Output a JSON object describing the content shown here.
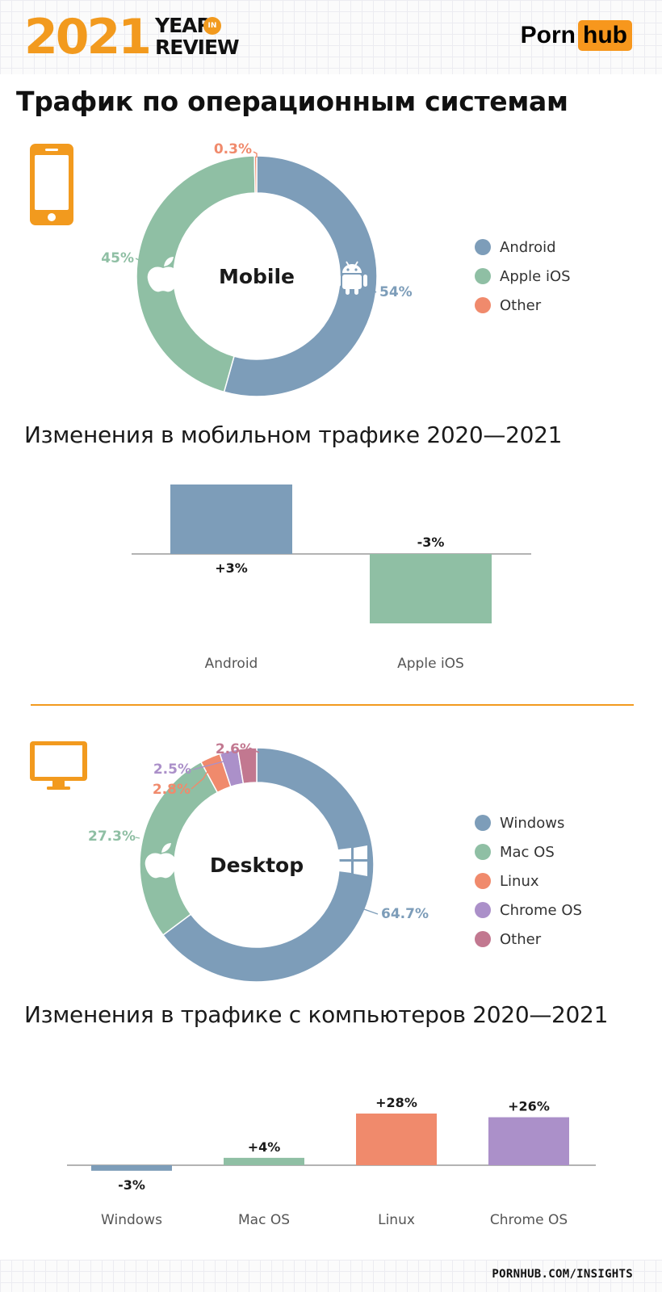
{
  "header": {
    "logo_year": "2021",
    "logo_year_word": "YEAR",
    "logo_in": "IN",
    "logo_review_word": "REVIEW",
    "brand_left": "Porn",
    "brand_right": "hub"
  },
  "title": "Трафик по операционным системам",
  "mobile_bars_title": "Изменения в мобильном трафике 2020—2021",
  "desktop_bars_title": "Изменения в трафике с компьютеров 2020—2021",
  "footer": "PORNHUB.COM/INSIGHTS",
  "icons": {
    "mobile": "smartphone-icon",
    "desktop": "monitor-icon",
    "android": "android-icon",
    "apple": "apple-icon",
    "windows": "windows-icon"
  },
  "colors": {
    "accent": "#f29a1e",
    "windows_android": "#7d9db9",
    "apple_mac": "#8fbfa4",
    "linux_other_mobile": "#f08a6c",
    "chrome": "#ab90c9",
    "other_desktop": "#c27890"
  },
  "chart_data": [
    {
      "id": "mobile_pie",
      "type": "pie",
      "title": "",
      "center_label": "Mobile",
      "series": [
        {
          "name": "Android",
          "value": 54,
          "label": "54%",
          "color": "#7d9db9"
        },
        {
          "name": "Apple iOS",
          "value": 45,
          "label": "45%",
          "color": "#8fbfa4"
        },
        {
          "name": "Other",
          "value": 0.3,
          "label": "0.3%",
          "color": "#f08a6c"
        }
      ],
      "legend": "right"
    },
    {
      "id": "mobile_change",
      "type": "bar",
      "title": "Изменения в мобильном трафике 2020—2021",
      "categories": [
        "Android",
        "Apple iOS"
      ],
      "values": [
        3,
        -3
      ],
      "labels": [
        "+3%",
        "-3%"
      ],
      "colors": [
        "#7d9db9",
        "#8fbfa4"
      ],
      "ylim": [
        -3,
        3
      ],
      "grid": false
    },
    {
      "id": "desktop_pie",
      "type": "pie",
      "title": "",
      "center_label": "Desktop",
      "series": [
        {
          "name": "Windows",
          "value": 64.7,
          "label": "64.7%",
          "color": "#7d9db9"
        },
        {
          "name": "Mac OS",
          "value": 27.3,
          "label": "27.3%",
          "color": "#8fbfa4"
        },
        {
          "name": "Linux",
          "value": 2.8,
          "label": "2.8%",
          "color": "#f08a6c"
        },
        {
          "name": "Chrome OS",
          "value": 2.5,
          "label": "2.5%",
          "color": "#ab90c9"
        },
        {
          "name": "Other",
          "value": 2.6,
          "label": "2.6%",
          "color": "#c27890"
        }
      ],
      "legend": "right"
    },
    {
      "id": "desktop_change",
      "type": "bar",
      "title": "Изменения в трафике с компьютеров 2020—2021",
      "categories": [
        "Windows",
        "Mac OS",
        "Linux",
        "Chrome OS"
      ],
      "values": [
        -3,
        4,
        28,
        26
      ],
      "labels": [
        "-3%",
        "+4%",
        "+28%",
        "+26%"
      ],
      "colors": [
        "#7d9db9",
        "#8fbfa4",
        "#f08a6c",
        "#ab90c9"
      ],
      "ylim": [
        -3,
        28
      ],
      "grid": false
    }
  ]
}
